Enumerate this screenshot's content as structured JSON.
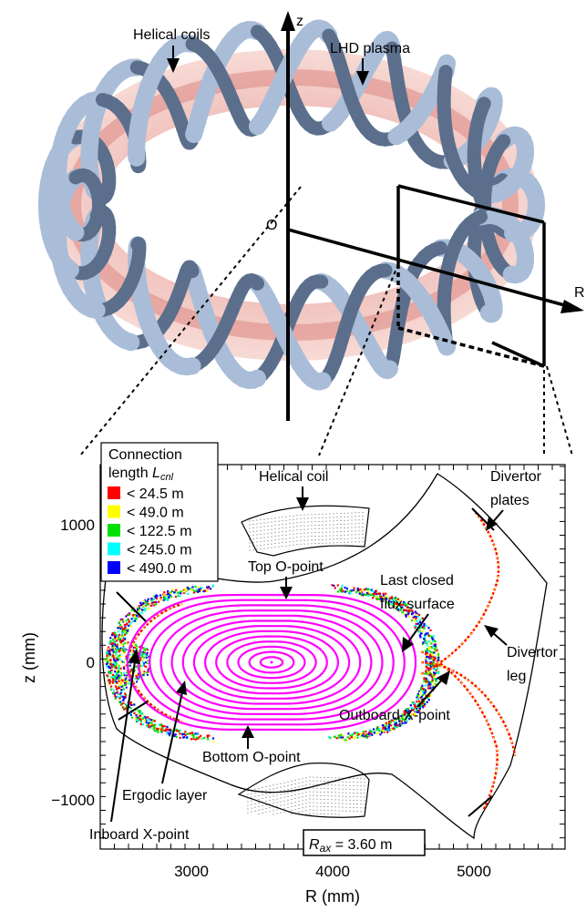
{
  "top_view": {
    "z_axis_label": "z",
    "r_axis_label": "R",
    "origin_label": "O",
    "helical_coils_label": "Helical coils",
    "plasma_label": "LHD plasma"
  },
  "cross_section": {
    "legend": {
      "title_line1": "Connection",
      "title_line2_main": "length ",
      "title_line2_sym": "L",
      "title_line2_sub": "cnl",
      "entries": [
        {
          "label": "< 24.5 m",
          "color": "#ff0000"
        },
        {
          "label": "< 49.0 m",
          "color": "#ffff00"
        },
        {
          "label": "< 122.5 m",
          "color": "#00e000"
        },
        {
          "label": "< 245.0 m",
          "color": "#00ffff"
        },
        {
          "label": "< 490.0 m",
          "color": "#0000ff"
        }
      ]
    },
    "annotations": {
      "helical_coil": "Helical coil",
      "top_o_point": "Top O-point",
      "last_closed_1": "Last closed",
      "last_closed_2": "flux surface",
      "divertor_plates_1": "Divertor",
      "divertor_plates_2": "plates",
      "divertor_leg_1": "Divertor",
      "divertor_leg_2": "leg",
      "outboard_x": "Outboard X-point",
      "bottom_o_point": "Bottom O-point",
      "ergodic_layer": "Ergodic layer",
      "inboard_x": "Inboard X-point",
      "rax_sym": "R",
      "rax_sub": "ax",
      "rax_value": " = 3.60 m"
    },
    "axes": {
      "xlabel": "R (mm)",
      "ylabel": "z (mm)",
      "x_ticks": [
        "3000",
        "4000",
        "5000"
      ],
      "y_ticks": [
        "1000",
        "0",
        "−1000"
      ]
    },
    "colors": {
      "coil": "#a9bdd8",
      "coil_edge": "#5b6f8c",
      "plasma": "#e8a29a",
      "flux_surface": "#ff00ff"
    }
  }
}
